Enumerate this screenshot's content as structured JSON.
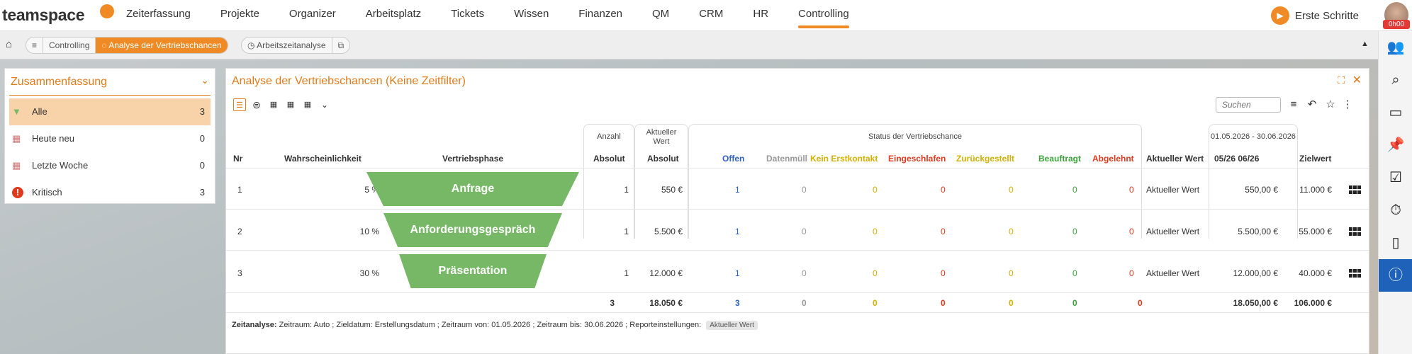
{
  "app": {
    "logo_text": "teamspace",
    "first_steps": "Erste Schritte",
    "avatar_time": "0h00"
  },
  "nav": [
    "Zeiterfassung",
    "Projekte",
    "Organizer",
    "Arbeitsplatz",
    "Tickets",
    "Wissen",
    "Finanzen",
    "QM",
    "CRM",
    "HR",
    "Controlling"
  ],
  "nav_active": "Controlling",
  "tabs": {
    "menu_icon": "≡",
    "controlling": "Controlling",
    "active_tab": "Analyse der Vertriebschancen",
    "second_tab": "Arbeitszeitanalyse",
    "external_icon": "external-link-icon"
  },
  "summary": {
    "title": "Zusammenfassung",
    "rows": [
      {
        "label": "Alle",
        "count": "3",
        "icon": "funnel-icon"
      },
      {
        "label": "Heute neu",
        "count": "0",
        "icon": "calendar-icon"
      },
      {
        "label": "Letzte Woche",
        "count": "0",
        "icon": "calendar-icon"
      },
      {
        "label": "Kritisch",
        "count": "3",
        "icon": "alert-icon"
      }
    ]
  },
  "main": {
    "title": "Analyse der Vertriebschancen (Keine Zeitfilter)",
    "search_placeholder": "Suchen",
    "groups": {
      "anzahl": "Anzahl",
      "aktueller_wert": "Aktueller Wert",
      "status": "Status der Vertriebschance",
      "period": "01.05.2026 - 30.06.2026"
    },
    "columns": {
      "nr": "Nr",
      "wahrscheinlichkeit": "Wahrscheinlichkeit",
      "phase": "Vertriebsphase",
      "anzahl_absolut": "Absolut",
      "wert_absolut": "Absolut",
      "offen": "Offen",
      "datenmuell": "Datenmüll",
      "kein_erstkontakt": "Kein Erstkontakt",
      "eingeschlafen": "Eingeschlafen",
      "zurueckgestellt": "Zurückgestellt",
      "beauftragt": "Beauftragt",
      "abgelehnt": "Abgelehnt",
      "aktueller_wert": "Aktueller Wert",
      "period_col": "05/26 06/26",
      "zielwert": "Zielwert"
    },
    "rows": [
      {
        "nr": "1",
        "prob": "5 %",
        "phase": "Anfrage",
        "anzahl": "1",
        "wert": "550 €",
        "offen": "1",
        "datenmuell": "0",
        "kein": "0",
        "einge": "0",
        "zurueck": "0",
        "beauf": "0",
        "abgel": "0",
        "akt": "Aktueller Wert",
        "period": "550,00 €",
        "ziel": "11.000 €"
      },
      {
        "nr": "2",
        "prob": "10 %",
        "phase": "Anforderungsgespräch",
        "anzahl": "1",
        "wert": "5.500 €",
        "offen": "1",
        "datenmuell": "0",
        "kein": "0",
        "einge": "0",
        "zurueck": "0",
        "beauf": "0",
        "abgel": "0",
        "akt": "Aktueller Wert",
        "period": "5.500,00 €",
        "ziel": "55.000 €"
      },
      {
        "nr": "3",
        "prob": "30 %",
        "phase": "Präsentation",
        "anzahl": "1",
        "wert": "12.000 €",
        "offen": "1",
        "datenmuell": "0",
        "kein": "0",
        "einge": "0",
        "zurueck": "0",
        "beauf": "0",
        "abgel": "0",
        "akt": "Aktueller Wert",
        "period": "12.000,00 €",
        "ziel": "40.000 €"
      }
    ],
    "totals": {
      "anzahl": "3",
      "wert": "18.050 €",
      "offen": "3",
      "datenmuell": "0",
      "kein": "0",
      "einge": "0",
      "zurueck": "0",
      "beauf": "0",
      "abgel": "0",
      "period": "18.050,00 €",
      "ziel": "106.000 €"
    },
    "footer": {
      "label": "Zeitanalyse:",
      "text": "Zeitraum: Auto ; Zieldatum: Erstellungsdatum ; Zeitraum von: 01.05.2026 ; Zeitraum bis: 30.06.2026 ; Reporteinstellungen:",
      "pill": "Aktueller Wert"
    }
  },
  "colors": {
    "accent": "#f08a24",
    "funnel": "#76b865",
    "rail_active": "#1e63b9"
  }
}
